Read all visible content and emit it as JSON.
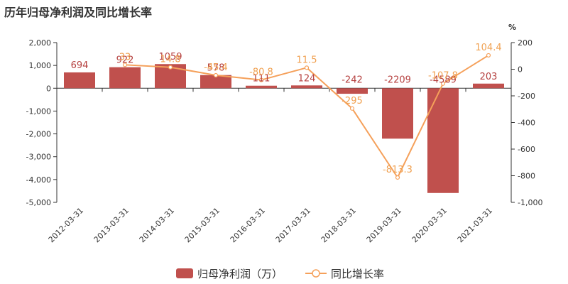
{
  "title_parts": [
    "历年",
    "归母净利润",
    "及同比增长率"
  ],
  "chart_data": {
    "type": "bar",
    "categories": [
      "2012-03-31",
      "2013-03-31",
      "2014-03-31",
      "2015-03-31",
      "2016-03-31",
      "2017-03-31",
      "2018-03-31",
      "2019-03-31",
      "2020-03-31",
      "2021-03-31"
    ],
    "series": [
      {
        "name": "归母净利润（万）",
        "type": "bar",
        "axis": "left",
        "color": "#c0504d",
        "values": [
          694,
          922,
          1059,
          578,
          111,
          124,
          -242,
          -2209,
          -4589,
          203
        ]
      },
      {
        "name": "同比增长率",
        "type": "line",
        "axis": "right",
        "color": "#f5a05a",
        "values": [
          null,
          33,
          14.8,
          -45.4,
          -80.8,
          11.5,
          -295,
          -813.3,
          -107.8,
          104.4
        ]
      }
    ],
    "y_left": {
      "ylim": [
        -5000,
        2000
      ],
      "ticks": [
        2000,
        1000,
        0,
        -1000,
        -2000,
        -3000,
        -4000,
        -5000
      ],
      "tick_labels": [
        "2,000",
        "1,000",
        "0",
        "-1,000",
        "-2,000",
        "-3,000",
        "-4,000",
        "-5,000"
      ]
    },
    "y_right": {
      "ylabel": "%",
      "ylim": [
        -1000,
        200
      ],
      "ticks": [
        200,
        0,
        -200,
        -400,
        -600,
        -800,
        -1000
      ],
      "tick_labels": [
        "200",
        "0",
        "-200",
        "-400",
        "-600",
        "-800",
        "-1,000"
      ]
    },
    "bar_labels": [
      "694",
      "922",
      "1059",
      "578",
      "111",
      "124",
      "-242",
      "-2209",
      "-4589",
      "203"
    ],
    "line_labels": [
      "",
      "33",
      "14.8",
      "-45.4",
      "-80.8",
      "11.5",
      "-295",
      "-813.3",
      "-107.8",
      "104.4"
    ],
    "legend": {
      "position": "bottom",
      "items": [
        "归母净利润（万）",
        "同比增长率"
      ]
    },
    "grid": false
  }
}
